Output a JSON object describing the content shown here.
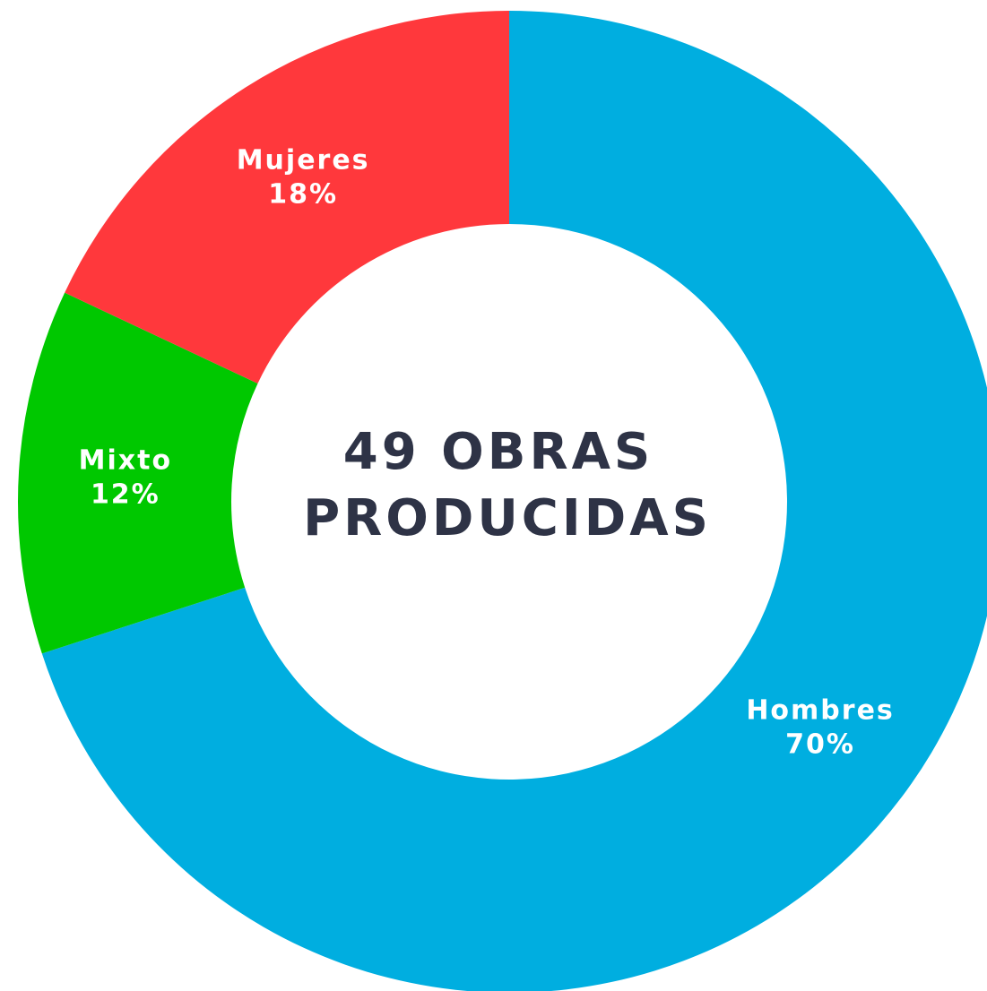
{
  "chart_data": {
    "type": "donut",
    "categories": [
      "Hombres",
      "Mixto",
      "Mujeres"
    ],
    "values": [
      70,
      12,
      18
    ],
    "value_labels": [
      "70%",
      "12%",
      "18%"
    ],
    "colors": [
      "#00aee0",
      "#00c800",
      "#ff383c"
    ],
    "center_text": [
      "49 OBRAS",
      "PRODUCIDAS"
    ]
  }
}
